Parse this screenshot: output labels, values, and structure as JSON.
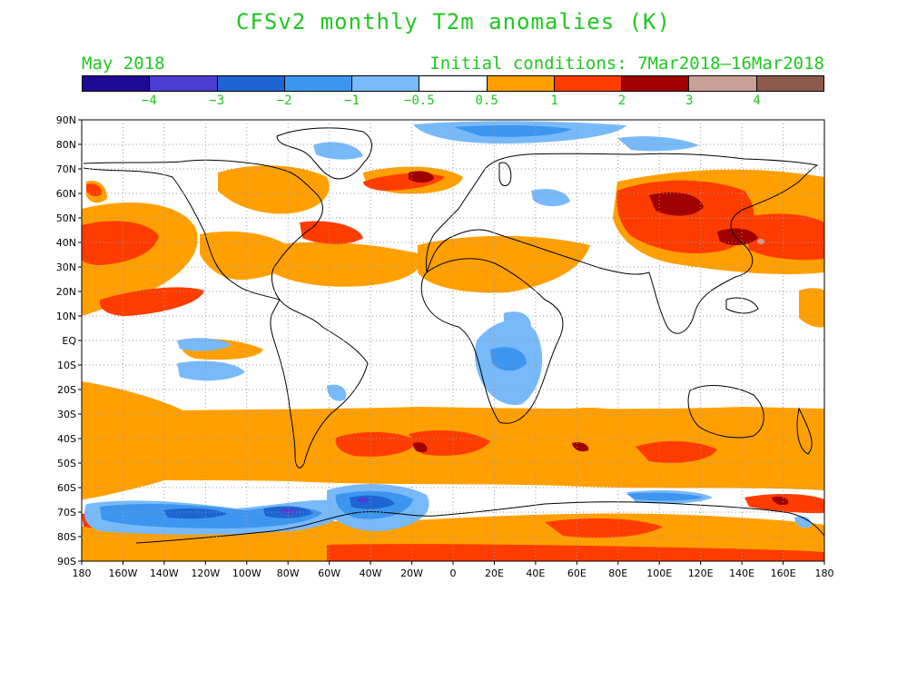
{
  "title": "CFSv2 monthly T2m anomalies (K)",
  "valid_month": "May 2018",
  "initial_conditions": "Initial conditions: 7Mar2018–16Mar2018",
  "colorbar": {
    "colors": [
      "#1f0a96",
      "#4b3cd2",
      "#1e64d2",
      "#3c96f0",
      "#78b9fa",
      "#ffffff",
      "#ffa000",
      "#ff3c00",
      "#a00000",
      "#c8a096",
      "#8c5a4b"
    ],
    "labels": [
      "−4",
      "−3",
      "−2",
      "−1",
      "−0.5",
      "0.5",
      "1",
      "2",
      "3",
      "4"
    ]
  },
  "lat_labels": [
    "90N",
    "80N",
    "70N",
    "60N",
    "50N",
    "40N",
    "30N",
    "20N",
    "10N",
    "EQ",
    "10S",
    "20S",
    "30S",
    "40S",
    "50S",
    "60S",
    "70S",
    "80S",
    "90S"
  ],
  "lon_labels": [
    "180",
    "160W",
    "140W",
    "120W",
    "100W",
    "80W",
    "60W",
    "40W",
    "20W",
    "0",
    "20E",
    "40E",
    "60E",
    "80E",
    "100E",
    "120E",
    "140E",
    "160E",
    "180"
  ]
}
